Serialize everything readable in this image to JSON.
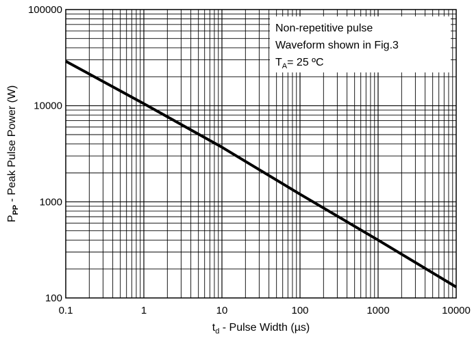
{
  "chart_data": {
    "type": "line",
    "x_scale": "log",
    "y_scale": "log",
    "xlim": [
      0.1,
      10000
    ],
    "ylim": [
      100,
      100000
    ],
    "x_ticks": [
      "0.1",
      "1",
      "10",
      "100",
      "1000",
      "10000"
    ],
    "y_ticks": [
      "100",
      "1000",
      "10000",
      "100000"
    ],
    "xlabel": {
      "main": "t",
      "sub": "d",
      "rest": " - Pulse Width (µs)"
    },
    "ylabel": {
      "main": "P",
      "sub": "PP",
      "rest": " - Peak Pulse Power (W)"
    },
    "grid": true,
    "annotations": {
      "line1": "Non-repetitive pulse",
      "line2": "Waveform shown in Fig.3",
      "line3_main": "T",
      "line3_sub": "A",
      "line3_rest": "= 25 ºC"
    },
    "series": [
      {
        "color": "#000000",
        "points": [
          {
            "x": 0.1,
            "y": 29000
          },
          {
            "x": 1,
            "y": 10500
          },
          {
            "x": 10,
            "y": 3700
          },
          {
            "x": 100,
            "y": 1200
          },
          {
            "x": 1000,
            "y": 400
          },
          {
            "x": 10000,
            "y": 130
          }
        ]
      }
    ]
  }
}
